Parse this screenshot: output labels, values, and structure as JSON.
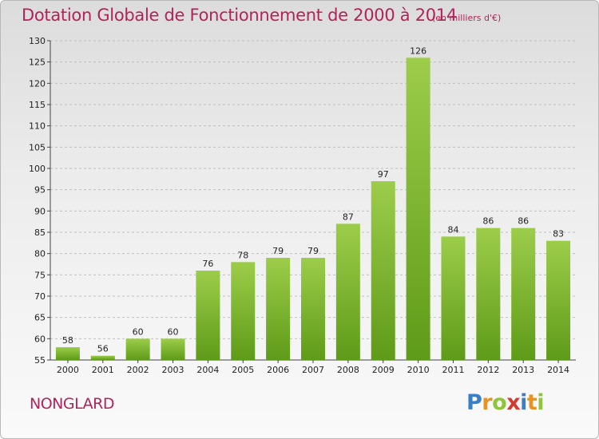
{
  "header": {
    "title": "Dotation Globale de Fonctionnement de 2000 à 2014",
    "unit": "(en milliers d'€)"
  },
  "footer": {
    "commune": "NONGLARD",
    "logo_letters": [
      "P",
      "r",
      "o",
      "x",
      "i",
      "t",
      "i"
    ],
    "logo_colors": [
      "#3a7fc4",
      "#e6941f",
      "#8fc43c",
      "#d23c2e",
      "#3a7fc4",
      "#e6941f",
      "#8fc43c"
    ]
  },
  "colors": {
    "title": "#b2235a",
    "bar_top": "#9ccd4a",
    "bar_bottom": "#5e9b18",
    "grid": "#bfbfbf"
  },
  "chart_data": {
    "type": "bar",
    "title": "Dotation Globale de Fonctionnement de 2000 à 2014",
    "subtitle": "(en milliers d'€)",
    "xlabel": "",
    "ylabel": "",
    "categories": [
      "2000",
      "2001",
      "2002",
      "2003",
      "2004",
      "2005",
      "2006",
      "2007",
      "2008",
      "2009",
      "2010",
      "2011",
      "2012",
      "2013",
      "2014"
    ],
    "values": [
      58,
      56,
      60,
      60,
      76,
      78,
      79,
      79,
      87,
      97,
      126,
      84,
      86,
      86,
      83
    ],
    "ylim": [
      55,
      130
    ],
    "yticks": [
      55,
      60,
      65,
      70,
      75,
      80,
      85,
      90,
      95,
      100,
      105,
      110,
      115,
      120,
      125,
      130
    ],
    "grid": true,
    "legend": "none"
  }
}
